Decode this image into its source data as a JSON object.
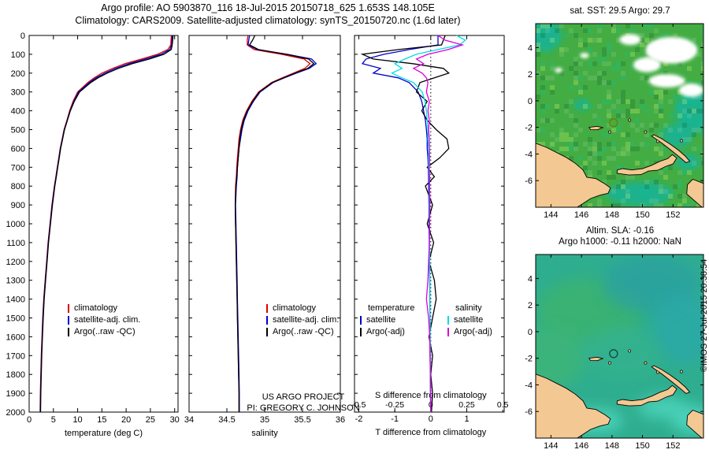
{
  "titles": {
    "line1": "Argo profile: AO 5903870_116 18-Jul-2015 20150718_625 1.653S 148.105E",
    "line2": "Climatology: CARS2009. Satellite-adjusted climatology: synTS_20150720.nc (1.6d later)"
  },
  "project": {
    "line1": "US ARGO PROJECT",
    "line2": "PI: GREGORY C. JOHNSON"
  },
  "credit": "©IMOS 27-Jul-2015 20:38:54",
  "chart_data": [
    {
      "type": "line",
      "id": "temperature-profile",
      "xlabel": "temperature (deg C)",
      "xlim": [
        0,
        30.7
      ],
      "xticks": [
        0,
        5,
        10,
        15,
        20,
        25,
        30
      ],
      "ylim": [
        0,
        2000
      ],
      "yticks": [
        0,
        100,
        200,
        300,
        400,
        500,
        600,
        700,
        800,
        900,
        1000,
        1100,
        1200,
        1300,
        1400,
        1500,
        1600,
        1700,
        1800,
        1900,
        2000
      ],
      "depths": [
        0,
        25,
        50,
        75,
        100,
        125,
        150,
        175,
        200,
        225,
        250,
        300,
        350,
        400,
        450,
        500,
        550,
        600,
        650,
        700,
        750,
        800,
        900,
        1000,
        1100,
        1200,
        1300,
        1400,
        1500,
        1600,
        1700,
        1800,
        1900,
        2000
      ],
      "series": [
        {
          "name": "climatology",
          "color": "#dd0000",
          "values": [
            29.3,
            29.25,
            29.2,
            28.6,
            26.5,
            23.2,
            19.8,
            17.2,
            15.0,
            13.4,
            12.1,
            10.0,
            9.05,
            8.35,
            7.8,
            7.2,
            6.8,
            6.4,
            6.1,
            5.8,
            5.5,
            5.2,
            4.7,
            4.3,
            3.9,
            3.6,
            3.3,
            3.0,
            2.8,
            2.65,
            2.5,
            2.4,
            2.3,
            2.25
          ]
        },
        {
          "name": "satellite-adj. clim.",
          "color": "#0000cc",
          "values": [
            29.5,
            29.45,
            29.4,
            29.0,
            27.2,
            24.0,
            20.6,
            17.8,
            15.6,
            13.8,
            12.4,
            10.2,
            9.2,
            8.45,
            7.85,
            7.25,
            6.85,
            6.45,
            6.15,
            5.85,
            5.55,
            5.25,
            4.75,
            4.35,
            3.95,
            3.65,
            3.35,
            3.05,
            2.85,
            2.7,
            2.55,
            2.45,
            2.35,
            2.3
          ]
        },
        {
          "name": "Argo(..raw -QC)",
          "color": "#000000",
          "values": [
            29.7,
            29.6,
            29.5,
            29.3,
            27.8,
            24.8,
            21.3,
            18.4,
            16.1,
            14.2,
            12.7,
            10.4,
            9.3,
            8.5,
            7.9,
            7.3,
            6.9,
            6.5,
            6.2,
            5.9,
            5.6,
            5.3,
            4.8,
            4.4,
            4.0,
            3.7,
            3.4,
            3.1,
            2.9,
            2.75,
            2.6,
            2.5,
            2.4,
            2.35
          ]
        }
      ]
    },
    {
      "type": "line",
      "id": "salinity-profile",
      "xlabel": "salinity",
      "xlim": [
        34,
        36
      ],
      "xticks": [
        34,
        34.5,
        35,
        35.5,
        36
      ],
      "ylim": [
        0,
        2000
      ],
      "depths": [
        0,
        25,
        50,
        75,
        100,
        125,
        150,
        175,
        200,
        225,
        250,
        300,
        350,
        400,
        450,
        500,
        550,
        600,
        650,
        700,
        750,
        800,
        900,
        1000,
        1100,
        1200,
        1300,
        1400,
        1500,
        1600,
        1700,
        1800,
        1900,
        2000
      ],
      "series": [
        {
          "name": "climatology",
          "color": "#dd0000",
          "values": [
            34.78,
            34.77,
            34.77,
            34.86,
            35.22,
            35.52,
            35.6,
            35.53,
            35.38,
            35.23,
            35.09,
            34.92,
            34.83,
            34.76,
            34.71,
            34.68,
            34.66,
            34.65,
            34.64,
            34.63,
            34.625,
            34.615,
            34.61,
            34.615,
            34.62,
            34.625,
            34.63,
            34.635,
            34.64,
            34.645,
            34.65,
            34.655,
            34.66,
            34.66
          ]
        },
        {
          "name": "satellite-adj. clim.",
          "color": "#0000cc",
          "values": [
            34.8,
            34.79,
            34.78,
            34.9,
            35.3,
            35.62,
            35.68,
            35.59,
            35.42,
            35.26,
            35.11,
            34.94,
            34.85,
            34.78,
            34.73,
            34.7,
            34.68,
            34.66,
            34.65,
            34.64,
            34.635,
            34.625,
            34.615,
            34.62,
            34.625,
            34.63,
            34.635,
            34.64,
            34.645,
            34.65,
            34.655,
            34.66,
            34.665,
            34.665
          ]
        },
        {
          "name": "Argo(..raw -QC)",
          "color": "#000000",
          "values": [
            34.87,
            34.84,
            34.8,
            34.92,
            35.28,
            35.58,
            35.65,
            35.57,
            35.4,
            35.25,
            35.1,
            34.93,
            34.84,
            34.77,
            34.72,
            34.69,
            34.67,
            34.66,
            34.65,
            34.64,
            34.63,
            34.62,
            34.61,
            34.615,
            34.62,
            34.625,
            34.63,
            34.635,
            34.64,
            34.645,
            34.65,
            34.655,
            34.66,
            34.66
          ]
        }
      ]
    },
    {
      "type": "line",
      "id": "difference-profile",
      "t_axis": {
        "label": "T difference from climatology",
        "ticks": [
          -2,
          -1,
          0,
          1
        ],
        "lim": [
          -2.12,
          2.04
        ]
      },
      "s_axis": {
        "label": "S difference from climatology",
        "ticks": [
          -0.5,
          -0.25,
          0,
          0.25,
          0.5
        ],
        "lim": [
          -0.53,
          0.51
        ]
      },
      "legend_headers": {
        "temperature": "temperature",
        "salinity": "salinity"
      },
      "depths": [
        0,
        25,
        50,
        75,
        100,
        125,
        150,
        175,
        200,
        225,
        250,
        300,
        350,
        400,
        450,
        500,
        550,
        600,
        650,
        700,
        750,
        800,
        900,
        1000,
        1100,
        1200,
        1300,
        1400,
        1500,
        1600,
        1700,
        1800,
        1900,
        2000
      ],
      "series": [
        {
          "id": "t-satellite",
          "label": "satellite",
          "axis": "t",
          "color": "#0000cc",
          "values": [
            0.2,
            0.2,
            0.2,
            -0.6,
            -1.3,
            -1.8,
            -1.9,
            -1.4,
            -1.6,
            -0.9,
            -0.6,
            -0.35,
            -0.25,
            -0.2,
            -0.15,
            -0.12,
            -0.1,
            -0.1,
            -0.08,
            -0.07,
            -0.06,
            -0.06,
            -0.05,
            -0.05,
            -0.04,
            -0.04,
            -0.03,
            -0.03,
            -0.02,
            -0.02,
            -0.02,
            -0.01,
            -0.01,
            0
          ]
        },
        {
          "id": "t-argo",
          "label": "Argo(-adj)",
          "axis": "t",
          "color": "#000000",
          "values": [
            0.4,
            0.35,
            0.3,
            -0.9,
            -1.9,
            -1.6,
            -0.5,
            0.35,
            0.5,
            0.1,
            -0.3,
            -0.4,
            -0.1,
            -0.25,
            -0.1,
            0.15,
            0.45,
            0.5,
            0.25,
            -0.1,
            0.1,
            -0.15,
            0.05,
            -0.1,
            0.08,
            -0.05,
            0.1,
            0.15,
            0.05,
            -0.05,
            0.05,
            0,
            0.05,
            0.02
          ]
        },
        {
          "id": "s-satellite",
          "label": "satellite",
          "axis": "s",
          "color": "#00dde6",
          "values": [
            0.18,
            0.24,
            0.2,
            0.05,
            -0.1,
            -0.18,
            -0.25,
            -0.2,
            -0.27,
            -0.2,
            -0.12,
            -0.06,
            -0.04,
            -0.03,
            -0.025,
            -0.02,
            -0.02,
            -0.015,
            -0.015,
            -0.015,
            -0.01,
            -0.01,
            -0.01,
            -0.01,
            -0.008,
            -0.008,
            -0.006,
            -0.006,
            -0.005,
            -0.004,
            -0.003,
            -0.002,
            -0.001,
            0
          ]
        },
        {
          "id": "s-argo",
          "label": "Argo(-adj)",
          "axis": "s",
          "color": "#dd00dd",
          "values": [
            0.05,
            0.1,
            0.22,
            0.12,
            -0.02,
            -0.1,
            -0.05,
            -0.12,
            -0.06,
            -0.03,
            -0.02,
            -0.03,
            -0.01,
            -0.02,
            -0.01,
            -0.015,
            -0.01,
            -0.01,
            -0.008,
            -0.01,
            -0.008,
            -0.008,
            -0.006,
            -0.008,
            -0.01,
            -0.015,
            -0.02,
            -0.03,
            -0.015,
            -0.008,
            -0.005,
            -0.003,
            -0.002,
            0
          ]
        }
      ]
    },
    {
      "type": "heatmap",
      "id": "sst-map",
      "title": "sat. SST: 29.5 Argo: 29.7",
      "lon_ticks": [
        144,
        146,
        148,
        150,
        152
      ],
      "lat_ticks": [
        4,
        2,
        0,
        -2,
        -4,
        -6
      ],
      "lon_range": [
        143,
        154
      ],
      "lat_range": [
        -8,
        5.8
      ],
      "argo_position": {
        "lon": 148.105,
        "lat": -1.653
      },
      "sea_color": "#43ad43",
      "teal_color": "#14b39a",
      "cloud_color": "#ffffff",
      "land_color": "#f4c892",
      "marker_color": "#6b7f00",
      "teal_patches": [
        [
          153.4,
          -0.8,
          1.3,
          1.6
        ],
        [
          152.3,
          -2.6,
          1.0,
          0.9
        ],
        [
          149.8,
          -7.0,
          2.2,
          0.9
        ],
        [
          143.5,
          4.9,
          1.2,
          1.2
        ],
        [
          153.0,
          -4.6,
          0.8,
          0.6
        ],
        [
          146.0,
          -0.3,
          0.5,
          0.4
        ]
      ],
      "clouds": [
        [
          151.9,
          3.8,
          1.7,
          1.0
        ],
        [
          150.3,
          2.7,
          0.9,
          0.55
        ],
        [
          151.6,
          1.5,
          1.2,
          0.5
        ],
        [
          153.2,
          0.8,
          0.8,
          0.5
        ],
        [
          149.2,
          4.6,
          0.7,
          0.4
        ],
        [
          146.2,
          3.4,
          0.3,
          0.2
        ],
        [
          144.5,
          2.3,
          0.25,
          0.18
        ]
      ]
    },
    {
      "type": "heatmap",
      "id": "sla-map",
      "title_line1": "Altim. SLA: -0.16",
      "title_line2": "Argo h1000: -0.11 h2000: NaN",
      "lon_ticks": [
        144,
        146,
        148,
        150,
        152
      ],
      "lat_ticks": [
        4,
        2,
        0,
        -2,
        -4,
        -6
      ],
      "lon_range": [
        143,
        154
      ],
      "lat_range": [
        -8,
        5.8
      ],
      "argo_position": {
        "lon": 148.105,
        "lat": -1.653
      },
      "sea_color": "#2fae8f",
      "land_color": "#f4c892",
      "marker_color": "#0f4f46",
      "blobs": [
        [
          146.5,
          1.5,
          3.5,
          2.5,
          "#3cb46a"
        ],
        [
          143.8,
          -2.0,
          2.6,
          2.2,
          "#3fb676"
        ],
        [
          150.6,
          3.6,
          3.2,
          2.2,
          "#2aa0a2"
        ],
        [
          152.8,
          0.2,
          2.2,
          2.6,
          "#2ba8aa"
        ],
        [
          148.6,
          -1.6,
          2.6,
          2.0,
          "#36b28e"
        ],
        [
          146.9,
          -6.7,
          1.8,
          0.9,
          "#55dfca"
        ],
        [
          151.3,
          -5.7,
          1.6,
          0.8,
          "#52dcc6"
        ],
        [
          153.3,
          -6.6,
          1.4,
          1.0,
          "#57e0cc"
        ],
        [
          143.4,
          -6.9,
          1.2,
          0.8,
          "#49c9ae"
        ]
      ]
    }
  ],
  "geo": {
    "polygons": [
      [
        [
          142.8,
          -3.1
        ],
        [
          143.7,
          -3.5
        ],
        [
          144.4,
          -3.9
        ],
        [
          145.0,
          -4.25
        ],
        [
          145.6,
          -4.7
        ],
        [
          146.1,
          -5.2
        ],
        [
          146.35,
          -5.75
        ],
        [
          146.95,
          -5.85
        ],
        [
          147.55,
          -6.25
        ],
        [
          147.9,
          -6.55
        ],
        [
          147.75,
          -6.95
        ],
        [
          147.2,
          -7.1
        ],
        [
          146.6,
          -7.35
        ],
        [
          146.0,
          -7.8
        ],
        [
          145.3,
          -8.3
        ],
        [
          142.8,
          -8.3
        ]
      ],
      [
        [
          148.33,
          -5.45
        ],
        [
          149.1,
          -5.58
        ],
        [
          149.9,
          -5.55
        ],
        [
          150.4,
          -5.28
        ],
        [
          151.0,
          -5.22
        ],
        [
          151.55,
          -4.92
        ],
        [
          152.0,
          -4.75
        ],
        [
          152.25,
          -4.3
        ],
        [
          151.95,
          -4.05
        ],
        [
          151.65,
          -4.35
        ],
        [
          151.15,
          -4.55
        ],
        [
          150.6,
          -4.85
        ],
        [
          150.0,
          -5.1
        ],
        [
          149.3,
          -5.2
        ],
        [
          148.7,
          -5.1
        ],
        [
          148.35,
          -5.2
        ]
      ],
      [
        [
          150.75,
          -2.55
        ],
        [
          151.25,
          -2.85
        ],
        [
          151.8,
          -3.25
        ],
        [
          152.35,
          -3.7
        ],
        [
          152.8,
          -4.15
        ],
        [
          153.1,
          -4.55
        ],
        [
          152.85,
          -4.65
        ],
        [
          152.4,
          -4.2
        ],
        [
          151.85,
          -3.7
        ],
        [
          151.3,
          -3.2
        ],
        [
          150.85,
          -2.85
        ],
        [
          150.6,
          -2.65
        ]
      ],
      [
        [
          146.5,
          -2.0
        ],
        [
          147.0,
          -1.92
        ],
        [
          147.4,
          -2.02
        ],
        [
          147.05,
          -2.18
        ],
        [
          146.6,
          -2.17
        ]
      ],
      [
        [
          153.3,
          -5.9
        ],
        [
          154.2,
          -6.3
        ],
        [
          154.2,
          -8.3
        ],
        [
          152.9,
          -7.0
        ],
        [
          152.95,
          -6.3
        ]
      ]
    ],
    "islets": [
      [
        149.15,
        -1.45
      ],
      [
        150.2,
        -2.35
      ],
      [
        152.55,
        -3.0
      ],
      [
        147.85,
        -2.35
      ],
      [
        151.0,
        -3.05
      ]
    ]
  }
}
